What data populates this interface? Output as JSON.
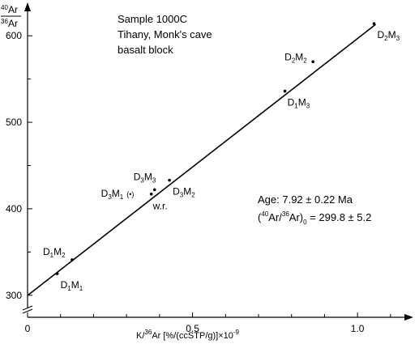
{
  "chart_data": {
    "type": "scatter",
    "title": "",
    "ylabel": {
      "sup": "40",
      "main": "Ar",
      "den_sup": "36",
      "den_main": "Ar"
    },
    "xlabel": {
      "pre": "K/",
      "sup": "36",
      "main": "Ar [%/(ccSTP/g)]×10",
      "exp": "-9"
    },
    "xlim": [
      0,
      1.12
    ],
    "ylim": [
      297,
      632
    ],
    "x_ticks": [
      {
        "value": 0,
        "label": "0"
      },
      {
        "value": 0.5,
        "label": "0.5"
      },
      {
        "value": 1.0,
        "label": "1.0"
      }
    ],
    "x_minor_ticks": [
      0.1,
      0.2,
      0.3,
      0.4,
      0.6,
      0.7,
      0.8,
      0.9,
      1.1
    ],
    "y_ticks": [
      {
        "value": 300,
        "label": "300"
      },
      {
        "value": 400,
        "label": "400"
      },
      {
        "value": 500,
        "label": "500"
      },
      {
        "value": 600,
        "label": "600"
      }
    ],
    "y_minor_ticks": [
      350,
      450,
      550
    ],
    "sample_info": [
      "Sample 1000C",
      "Tihany, Monk's cave",
      "basalt block"
    ],
    "fit": {
      "intercept": 299.8,
      "slope": 297,
      "x_range": [
        0,
        1.055
      ],
      "age_prefix": "Age: ",
      "age_value": "7.92 ± 0.22 Ma",
      "intercept_label": {
        "open": "(",
        "sup": "40",
        "a": "Ar/",
        "sup2": "36",
        "b": "Ar)",
        "sub": "0",
        "value": " = 299.8 ± 5.2"
      }
    },
    "points": [
      {
        "base": "D",
        "n1": "1",
        "mid": "M",
        "n2": "1",
        "x": 0.09,
        "y": 325,
        "label_dx": 4,
        "label_dy": 18
      },
      {
        "base": "D",
        "n1": "1",
        "mid": "M",
        "n2": "2",
        "x": 0.135,
        "y": 341,
        "label_dx": -36,
        "label_dy": -6
      },
      {
        "base": "D",
        "n1": "3",
        "mid": "M",
        "n2": "1",
        "x": 0.375,
        "y": 417,
        "label_dx": -62,
        "label_dy": 3,
        "extra": "(•)"
      },
      {
        "base": "D",
        "n1": "3",
        "mid": "M",
        "n2": "3",
        "x": 0.385,
        "y": 422,
        "label_dx": -26,
        "label_dy": -12
      },
      {
        "base": "w.r.",
        "x": 0.375,
        "y": 418,
        "label_dx": 2,
        "label_dy": 20,
        "is_text": true
      },
      {
        "base": "D",
        "n1": "3",
        "mid": "M",
        "n2": "2",
        "x": 0.43,
        "y": 433,
        "label_dx": 4,
        "label_dy": 18
      },
      {
        "base": "D",
        "n1": "1",
        "mid": "M",
        "n2": "3",
        "x": 0.78,
        "y": 536,
        "label_dx": 3,
        "label_dy": 18
      },
      {
        "base": "D",
        "n1": "2",
        "mid": "M",
        "n2": "2",
        "x": 0.865,
        "y": 570,
        "label_dx": -35,
        "label_dy": -2
      },
      {
        "base": "D",
        "n1": "2",
        "mid": "M",
        "n2": "3",
        "x": 1.05,
        "y": 614,
        "label_dx": 4,
        "label_dy": 18
      }
    ]
  }
}
